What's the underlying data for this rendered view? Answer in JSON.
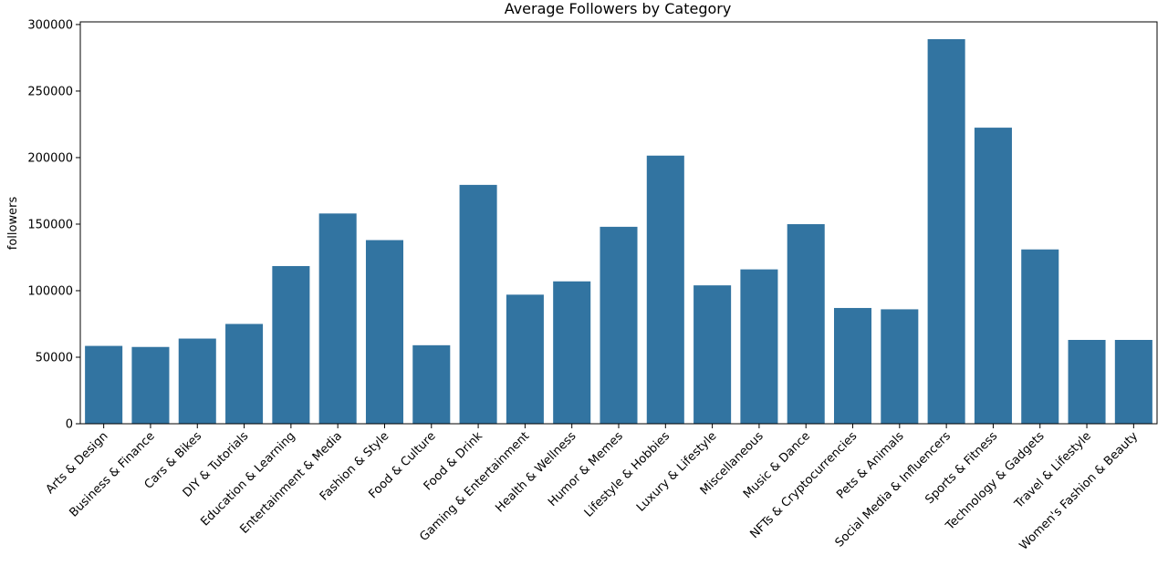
{
  "chart_data": {
    "type": "bar",
    "title": "Average Followers by Category",
    "xlabel": "",
    "ylabel": "followers",
    "ylim": [
      0,
      302000
    ],
    "yticks": [
      0,
      50000,
      100000,
      150000,
      200000,
      250000,
      300000
    ],
    "bar_color": "#3274a1",
    "grid": false,
    "categories": [
      "Arts & Design",
      "Business & Finance",
      "Cars & Bikes",
      "DIY & Tutorials",
      "Education & Learning",
      "Entertainment & Media",
      "Fashion & Style",
      "Food & Culture",
      "Food & Drink",
      "Gaming & Entertainment",
      "Health & Wellness",
      "Humor & Memes",
      "Lifestyle & Hobbies",
      "Luxury & Lifestyle",
      "Miscellaneous",
      "Music & Dance",
      "NFTs & Cryptocurrencies",
      "Pets & Animals",
      "Social Media & Influencers",
      "Sports & Fitness",
      "Technology & Gadgets",
      "Travel & Lifestyle",
      "Women's Fashion & Beauty"
    ],
    "values": [
      58500,
      57700,
      64000,
      75000,
      118500,
      158000,
      138000,
      59000,
      179500,
      97000,
      107000,
      148000,
      201500,
      104000,
      116000,
      150000,
      87000,
      86000,
      289000,
      222500,
      131000,
      63000,
      63000
    ]
  }
}
